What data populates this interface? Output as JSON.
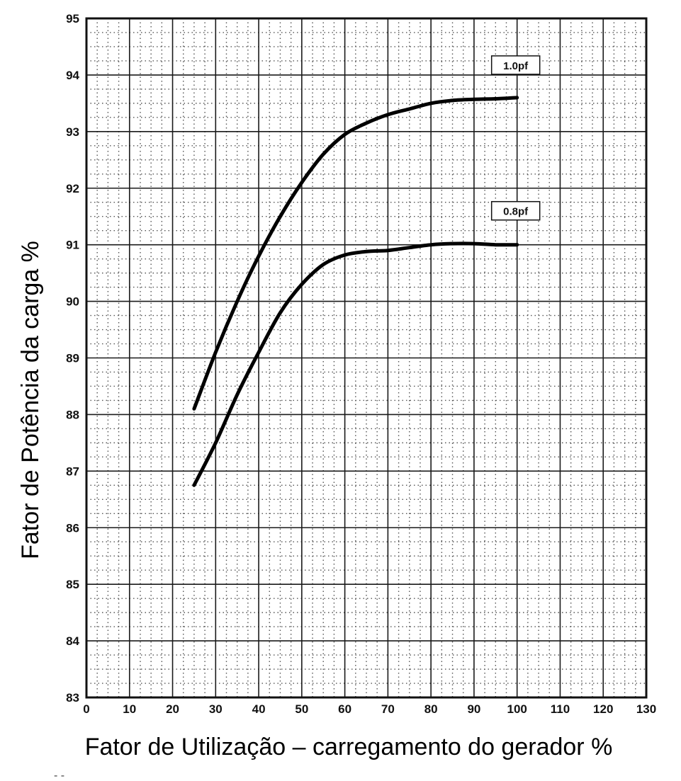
{
  "chart_data": {
    "type": "line",
    "title": "",
    "xlabel": "Fator de Utilização – carregamento do gerador %",
    "ylabel": "Fator de Potência da carga %",
    "xlim": [
      0,
      130
    ],
    "ylim": [
      83,
      95
    ],
    "x_ticks": [
      0,
      10,
      20,
      30,
      40,
      50,
      60,
      70,
      80,
      90,
      100,
      110,
      120,
      130
    ],
    "y_ticks": [
      83,
      84,
      85,
      86,
      87,
      88,
      89,
      90,
      91,
      92,
      93,
      94,
      95
    ],
    "x_tick_labels": [
      "0",
      "10",
      "20",
      "30",
      "40",
      "50",
      "60",
      "70",
      "80",
      "90",
      "100",
      "110",
      "120",
      "130"
    ],
    "y_tick_labels": [
      "83",
      "84",
      "85",
      "86",
      "87",
      "88",
      "89",
      "90",
      "91",
      "92",
      "93",
      "94",
      "95"
    ],
    "grid": true,
    "series": [
      {
        "name": "1.0pf",
        "x": [
          25,
          30,
          35,
          40,
          45,
          50,
          55,
          60,
          65,
          70,
          75,
          80,
          85,
          90,
          95,
          100
        ],
        "values": [
          88.1,
          89.1,
          90.0,
          90.8,
          91.5,
          92.1,
          92.6,
          92.95,
          93.15,
          93.3,
          93.4,
          93.5,
          93.55,
          93.57,
          93.58,
          93.6
        ]
      },
      {
        "name": "0.8pf",
        "x": [
          25,
          30,
          35,
          40,
          45,
          50,
          55,
          60,
          65,
          70,
          75,
          80,
          85,
          90,
          95,
          100
        ],
        "values": [
          86.75,
          87.5,
          88.35,
          89.1,
          89.8,
          90.3,
          90.65,
          90.82,
          90.88,
          90.9,
          90.95,
          91.0,
          91.02,
          91.02,
          91.0,
          91.0
        ]
      }
    ],
    "legend_labels": [
      "1.0pf",
      "0.8pf"
    ],
    "footer_mark": "- -"
  },
  "colors": {
    "line": "#000000",
    "grid_major": "#1a1a1a",
    "grid_minor": "#555555",
    "background": "#ffffff"
  }
}
